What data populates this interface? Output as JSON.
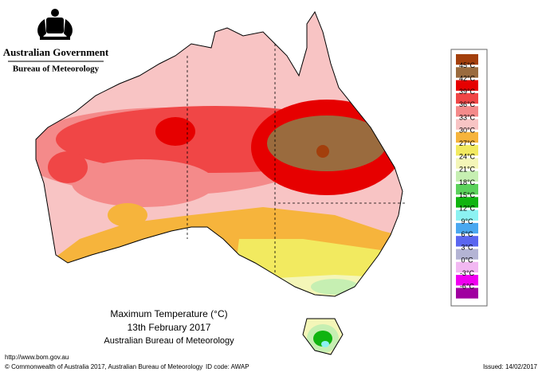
{
  "header": {
    "government": "Australian Government",
    "bureau": "Bureau of Meteorology"
  },
  "legend": {
    "colors": [
      "#a33f0c",
      "#9a6b3e",
      "#e60000",
      "#f04646",
      "#f48a8a",
      "#f8c4c4",
      "#f6b43c",
      "#f2ea60",
      "#f4f6b8",
      "#c6efb2",
      "#5cd25c",
      "#10b410",
      "#8cf2f2",
      "#4aa8f0",
      "#5a66f0",
      "#b4b4d4",
      "#f2b8f2",
      "#f000f0",
      "#a000a0"
    ],
    "labels": [
      "45°C",
      "42°C",
      "39°C",
      "36°C",
      "33°C",
      "30°C",
      "27°C",
      "24°C",
      "21°C",
      "18°C",
      "15°C",
      "12°C",
      "9°C",
      "6°C",
      "3°C",
      "0°C",
      "-3°C",
      "-6°C"
    ]
  },
  "caption": {
    "title": "Maximum Temperature (°C)",
    "date": "13th February 2017",
    "agency": "Australian Bureau of Meteorology"
  },
  "footer": {
    "url": "http://www.bom.gov.au",
    "copyright": "© Commonwealth of Australia 2017, Australian Bureau of Meteorology",
    "id_code": "ID code: AWAP",
    "issued": "Issued: 14/02/2017"
  }
}
